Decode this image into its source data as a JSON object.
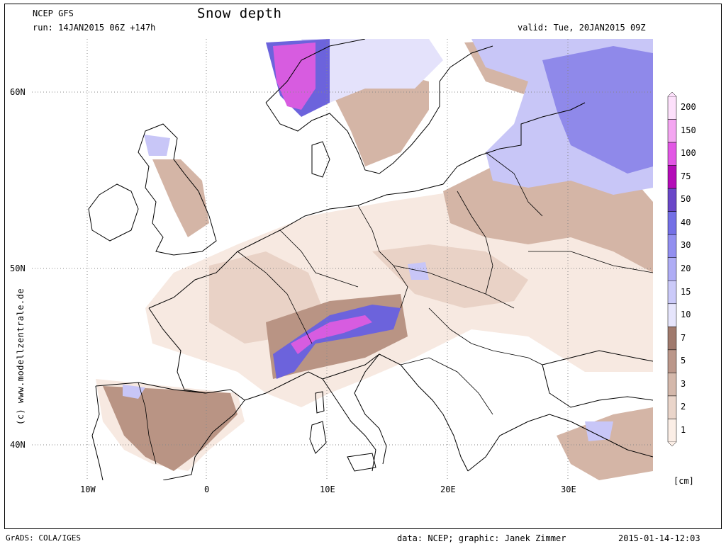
{
  "header": {
    "model": "NCEP GFS",
    "run": "run: 14JAN2015 06Z +147h",
    "title": "Snow depth",
    "valid": "valid: Tue, 20JAN2015 09Z"
  },
  "axes": {
    "lat_labels": [
      "60N",
      "50N",
      "40N"
    ],
    "lon_labels": [
      "10W",
      "0",
      "10E",
      "20E",
      "30E"
    ]
  },
  "colorbar": {
    "unit": "[cm]",
    "levels": [
      "200",
      "150",
      "100",
      "75",
      "50",
      "40",
      "30",
      "20",
      "15",
      "10",
      "7",
      "5",
      "3",
      "2",
      "1"
    ],
    "colors": [
      "#fde0fb",
      "#f4a6f1",
      "#e257e5",
      "#b40cb8",
      "#6a47c8",
      "#7470e6",
      "#928ff0",
      "#afadf5",
      "#cbcaf9",
      "#e6e5fc",
      "#a07a6d",
      "#bb978a",
      "#d4b8ab",
      "#ead5ca",
      "#fbeee6"
    ]
  },
  "snow_colors": {
    "light": "#f7e9e1",
    "brown1": "#e9d2c6",
    "brown2": "#d4b5a6",
    "brown3": "#b99484",
    "lav1": "#e4e2fb",
    "lav2": "#c8c6f7",
    "blue1": "#8f89ea",
    "blue2": "#6c63dc",
    "mag1": "#d75ce0",
    "mag2": "#b617c4"
  },
  "side_credit": "(c) www.modellzentrale.de",
  "footer": {
    "left": "GrADS: COLA/IGES",
    "center": "data: NCEP; graphic: Janek Zimmer",
    "right": "2015-01-14-12:03"
  }
}
